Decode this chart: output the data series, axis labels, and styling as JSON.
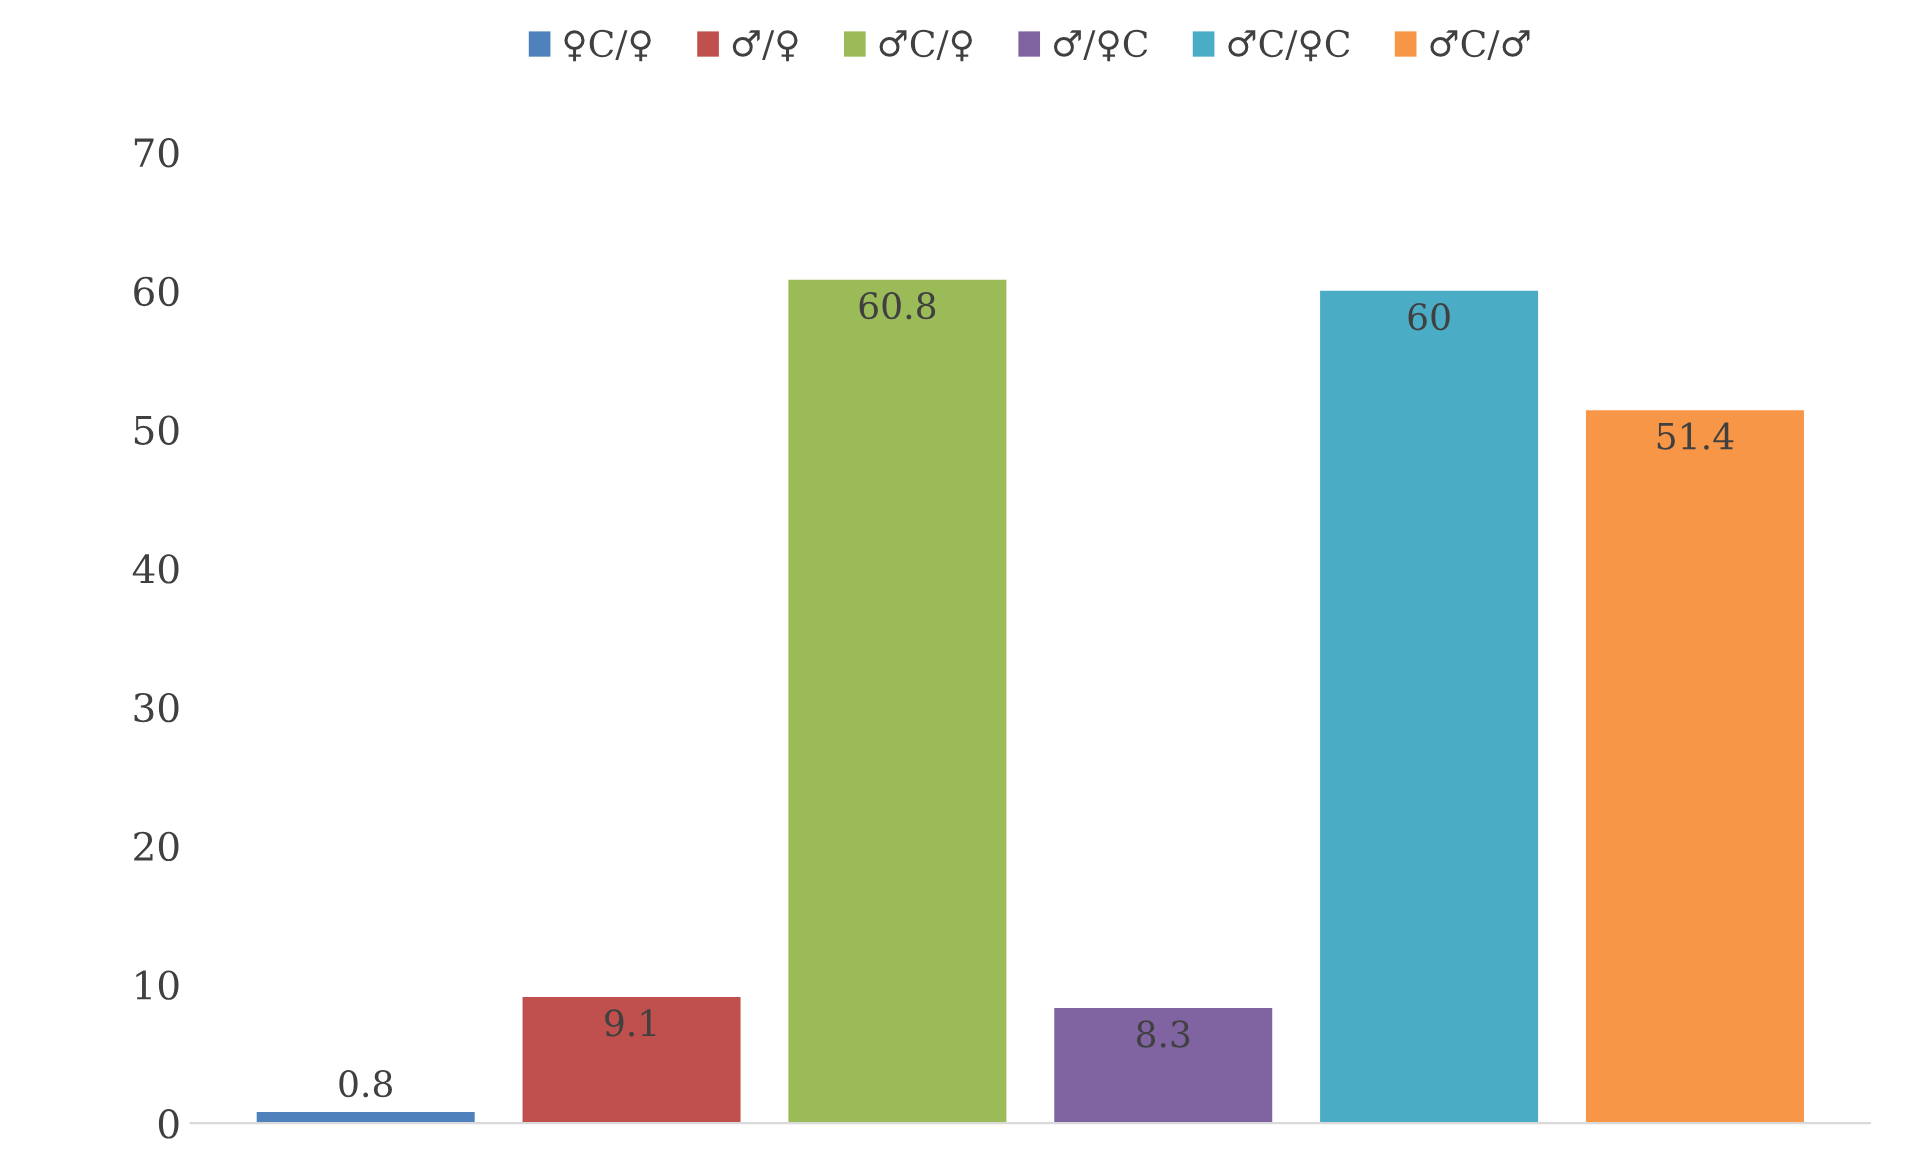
{
  "chart_data": {
    "type": "bar",
    "categories": [
      null
    ],
    "series": [
      {
        "name": "♀C/♀",
        "color": "#4f81bd",
        "values": [
          0.8
        ]
      },
      {
        "name": "♂/♀",
        "color": "#c0504d",
        "values": [
          9.1
        ]
      },
      {
        "name": "♂C/♀",
        "color": "#9bbb59",
        "values": [
          60.8
        ]
      },
      {
        "name": "♂/♀C",
        "color": "#8064a2",
        "values": [
          8.3
        ]
      },
      {
        "name": "♂C/♀C",
        "color": "#4bacc6",
        "values": [
          60
        ]
      },
      {
        "name": "♂C/♂",
        "color": "#f79646",
        "values": [
          51.4
        ]
      }
    ],
    "ylim": [
      0,
      70
    ],
    "yticks": [
      0,
      10,
      20,
      30,
      40,
      50,
      60,
      70
    ],
    "data_labels": true,
    "legend": "top",
    "grid": false
  }
}
